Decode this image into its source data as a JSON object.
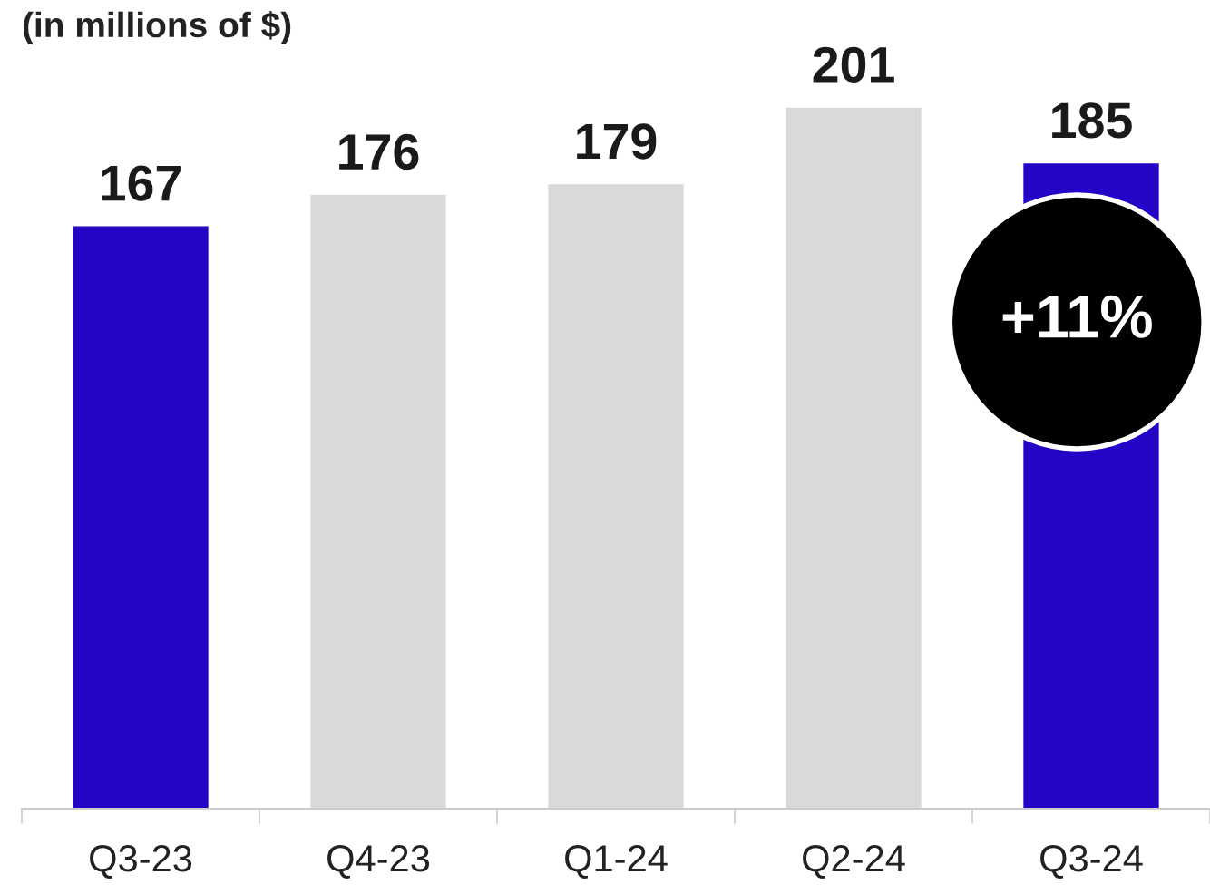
{
  "chart_data": {
    "type": "bar",
    "subtitle": "(in millions of $)",
    "categories": [
      "Q3-23",
      "Q4-23",
      "Q1-24",
      "Q2-24",
      "Q3-24"
    ],
    "values": [
      167,
      176,
      179,
      201,
      185
    ],
    "colors": [
      "#2305c8",
      "#d9d9d9",
      "#d9d9d9",
      "#d9d9d9",
      "#2305c8"
    ],
    "tick_labels": "x",
    "grid": false,
    "data_labels": true,
    "annotations": [
      "+11%"
    ]
  }
}
